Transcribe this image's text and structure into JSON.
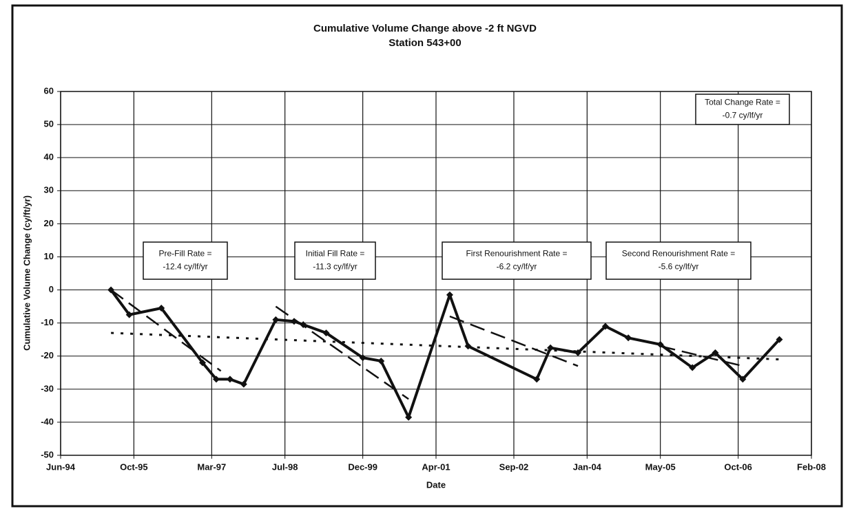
{
  "chart_data": {
    "type": "line",
    "title": "Cumulative Volume Change above -2 ft NGVD",
    "subtitle": "Station 543+00",
    "x_label": "Date",
    "y_label": "Cumulative Volume Change (cy/ft/yr)",
    "xlim": [
      "1994-06",
      "2008-02"
    ],
    "xticks": [
      {
        "value": "1994-06",
        "label": "Jun-94"
      },
      {
        "value": "1995-10",
        "label": "Oct-95"
      },
      {
        "value": "1997-03",
        "label": "Mar-97"
      },
      {
        "value": "1998-07",
        "label": "Jul-98"
      },
      {
        "value": "1999-12",
        "label": "Dec-99"
      },
      {
        "value": "2001-04",
        "label": "Apr-01"
      },
      {
        "value": "2002-09",
        "label": "Sep-02"
      },
      {
        "value": "2004-01",
        "label": "Jan-04"
      },
      {
        "value": "2005-05",
        "label": "May-05"
      },
      {
        "value": "2006-10",
        "label": "Oct-06"
      },
      {
        "value": "2008-02",
        "label": "Feb-08"
      }
    ],
    "ylim": [
      -50,
      60
    ],
    "yticks": [
      -50,
      -40,
      -30,
      -20,
      -10,
      0,
      10,
      20,
      30,
      40,
      50,
      60
    ],
    "grid": true,
    "series": [
      {
        "color": "#111111",
        "line_style": "solid",
        "marker": "diamond",
        "x": [
          "1995-05",
          "1995-09",
          "1996-04",
          "1997-01",
          "1997-04",
          "1997-07",
          "1997-10",
          "1998-05",
          "1998-09",
          "1998-11",
          "1999-04",
          "1999-12",
          "2000-04",
          "2000-10",
          "2001-07",
          "2001-11",
          "2003-02",
          "2003-05",
          "2003-11",
          "2004-05",
          "2004-10",
          "2005-05",
          "2005-12",
          "2006-05",
          "2006-11",
          "2007-07"
        ],
        "values": [
          0,
          -7.5,
          -5.5,
          -22,
          -27,
          -27,
          -28.5,
          -9,
          -9.5,
          -10.5,
          -13,
          -20.5,
          -21.5,
          -38.5,
          -1.5,
          -17,
          -27,
          -17.5,
          -19,
          -11,
          -14.5,
          -16.5,
          -23.5,
          -19,
          -27,
          -15
        ]
      },
      {
        "color": "#111111",
        "line_style": "dashed",
        "x": [
          "1995-05",
          "1997-05"
        ],
        "values": [
          0,
          -24.5
        ]
      },
      {
        "color": "#111111",
        "line_style": "dashed",
        "x": [
          "1998-05",
          "2000-10"
        ],
        "values": [
          -5,
          -33
        ]
      },
      {
        "color": "#111111",
        "line_style": "dashed",
        "x": [
          "2001-07",
          "2003-11"
        ],
        "values": [
          -8,
          -23
        ]
      },
      {
        "color": "#111111",
        "line_style": "dashed",
        "x": [
          "2005-05",
          "2006-11"
        ],
        "values": [
          -17,
          -23
        ]
      },
      {
        "color": "#111111",
        "line_style": "dotted",
        "x": [
          "1995-05",
          "2007-07"
        ],
        "values": [
          -13,
          -21
        ]
      }
    ],
    "annotations": [
      {
        "lines": [
          "Total Change Rate =",
          "-0.7 cy/lf/yr"
        ]
      },
      {
        "lines": [
          "Pre-Fill Rate =",
          "-12.4 cy/lf/yr"
        ]
      },
      {
        "lines": [
          "Initial Fill Rate =",
          "-11.3 cy/lf/yr"
        ]
      },
      {
        "lines": [
          "First Renourishment Rate =",
          "-6.2 cy/lf/yr"
        ]
      },
      {
        "lines": [
          "Second Renourishment Rate =",
          "-5.6 cy/lf/yr"
        ]
      }
    ]
  }
}
